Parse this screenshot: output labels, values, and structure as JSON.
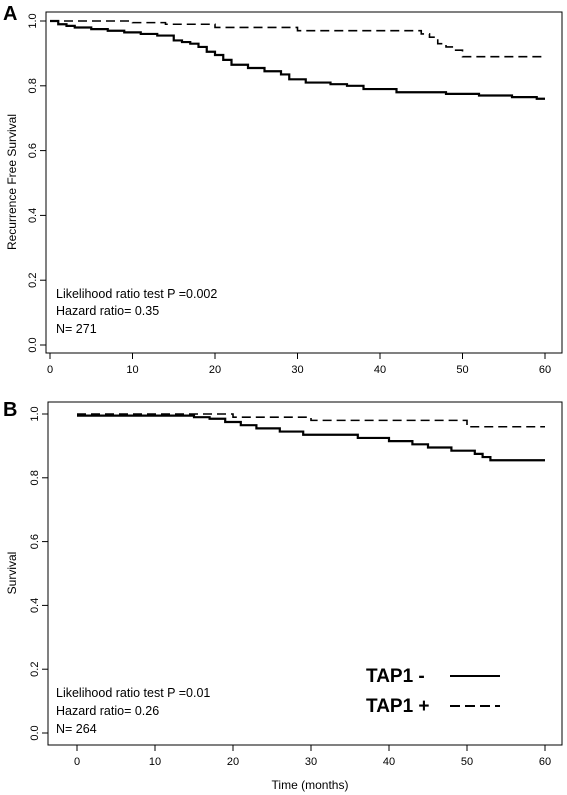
{
  "chart_data": [
    {
      "type": "line",
      "panel_label": "A",
      "title": "",
      "xlabel": "",
      "ylabel": "Recurrence Free Survival",
      "xlim": [
        0,
        60
      ],
      "ylim": [
        0.0,
        1.0
      ],
      "x_ticks": [
        "0",
        "10",
        "20",
        "30",
        "40",
        "50",
        "60"
      ],
      "y_ticks": [
        "0.0",
        "0.2",
        "0.4",
        "0.6",
        "0.8",
        "1.0"
      ],
      "annotations": [
        "Likelihood ratio test P =0.002",
        "Hazard ratio= 0.35",
        "N= 271"
      ],
      "series": [
        {
          "style": "solid",
          "x": [
            0,
            1,
            2,
            3,
            5,
            7,
            9,
            11,
            13,
            15,
            16,
            17,
            18,
            19,
            20,
            21,
            22,
            24,
            26,
            28,
            29,
            31,
            34,
            36,
            38,
            42,
            48,
            52,
            56,
            59,
            60
          ],
          "y": [
            1.0,
            0.99,
            0.985,
            0.98,
            0.975,
            0.97,
            0.965,
            0.96,
            0.955,
            0.94,
            0.935,
            0.93,
            0.92,
            0.905,
            0.895,
            0.88,
            0.865,
            0.855,
            0.845,
            0.835,
            0.82,
            0.81,
            0.805,
            0.8,
            0.79,
            0.78,
            0.775,
            0.77,
            0.765,
            0.76,
            0.76
          ]
        },
        {
          "style": "dashed",
          "x": [
            0,
            10,
            14,
            20,
            30,
            45,
            46,
            47,
            48,
            49,
            50,
            60
          ],
          "y": [
            1.0,
            0.995,
            0.99,
            0.98,
            0.97,
            0.96,
            0.95,
            0.93,
            0.92,
            0.91,
            0.89,
            0.89
          ]
        }
      ]
    },
    {
      "type": "line",
      "panel_label": "B",
      "title": "",
      "xlabel": "Time (months)",
      "ylabel": "Survival",
      "xlim": [
        0,
        60
      ],
      "ylim": [
        0.0,
        1.0
      ],
      "x_ticks": [
        "0",
        "10",
        "20",
        "30",
        "40",
        "50",
        "60"
      ],
      "y_ticks": [
        "0.0",
        "0.2",
        "0.4",
        "0.6",
        "0.8",
        "1.0"
      ],
      "annotations": [
        "Likelihood ratio test P =0.01",
        "Hazard ratio= 0.26",
        "N= 264"
      ],
      "legend": {
        "position": "bottom-right",
        "entries": [
          {
            "label": "TAP1 -",
            "style": "solid"
          },
          {
            "label": "TAP1 +",
            "style": "dashed"
          }
        ]
      },
      "series": [
        {
          "name": "TAP1 -",
          "style": "solid",
          "x": [
            0,
            14,
            15,
            17,
            19,
            21,
            23,
            26,
            29,
            31,
            36,
            40,
            43,
            45,
            48,
            51,
            52,
            53,
            60
          ],
          "y": [
            0.995,
            0.995,
            0.99,
            0.985,
            0.975,
            0.965,
            0.955,
            0.945,
            0.935,
            0.935,
            0.925,
            0.915,
            0.905,
            0.895,
            0.885,
            0.875,
            0.865,
            0.855,
            0.855
          ]
        },
        {
          "name": "TAP1 +",
          "style": "dashed",
          "x": [
            0,
            20,
            30,
            50,
            60
          ],
          "y": [
            1.0,
            0.99,
            0.98,
            0.96,
            0.96
          ]
        }
      ]
    }
  ]
}
